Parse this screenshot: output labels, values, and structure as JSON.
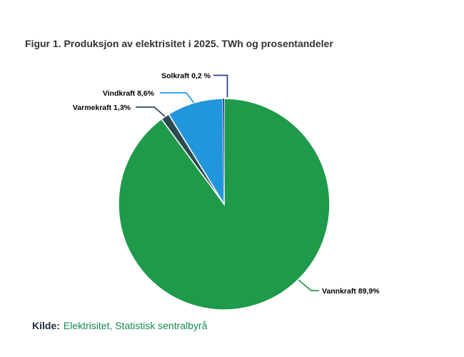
{
  "figure": {
    "title": "Figur 1. Produksjon av elektrisitet i 2025. TWh og prosentandeler"
  },
  "source": {
    "label": "Kilde:",
    "text": "Elektrisitet, Statistisk sentralbyrå",
    "link_color": "#168B4D"
  },
  "chart_data": {
    "type": "pie",
    "title": "Figur 1. Produksjon av elektrisitet i 2025. TWh og prosentandeler",
    "unit": "percent",
    "start_angle_deg": 0,
    "direction": "clockwise",
    "legend": "none",
    "labels_position": "outside-with-leader-lines",
    "slices": [
      {
        "name": "Vannkraft",
        "value_pct": 89.9,
        "display": "Vannkraft 89,9%",
        "color": "#1E9A4A"
      },
      {
        "name": "Varmekraft",
        "value_pct": 1.3,
        "display": "Varmekraft 1,3%",
        "color": "#2C4A52"
      },
      {
        "name": "Vindkraft",
        "value_pct": 8.6,
        "display": "Vindkraft 8,6%",
        "color": "#2296DC"
      },
      {
        "name": "Solkraft",
        "value_pct": 0.2,
        "display": "Solkraft 0,2 %",
        "color": "#2B3E90"
      }
    ]
  }
}
